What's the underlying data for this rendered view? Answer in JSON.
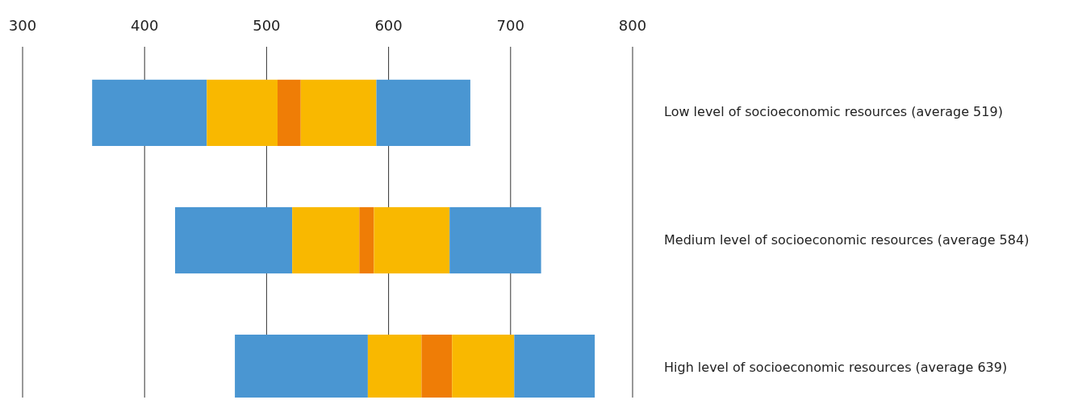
{
  "chart_data": {
    "type": "bar",
    "orientation": "horizontal",
    "categories": [
      "Low level of socioeconomic resources (average 519)",
      "Medium level of socioeconomic resources (average 584)",
      "High level of socioeconomic resources (average 639)"
    ],
    "series": [
      {
        "color": "#4a96d2",
        "base": [
          357,
          425,
          474
        ],
        "values": [
          94,
          96,
          109
        ]
      },
      {
        "color": "#f9b800",
        "base": [
          451,
          521,
          583
        ],
        "values": [
          58,
          55,
          44
        ]
      },
      {
        "color": "#ef7d06",
        "base": [
          509,
          576,
          627
        ],
        "values": [
          19,
          12,
          25
        ]
      },
      {
        "color": "#f9b800",
        "base": [
          528,
          588,
          652
        ],
        "values": [
          62,
          62,
          51
        ]
      },
      {
        "color": "#4a96d2",
        "base": [
          590,
          650,
          703
        ],
        "values": [
          77,
          75,
          66
        ]
      }
    ],
    "xlim": [
      300,
      800
    ],
    "xticks": [
      300,
      400,
      500,
      600,
      700,
      800
    ],
    "grid": "x"
  }
}
